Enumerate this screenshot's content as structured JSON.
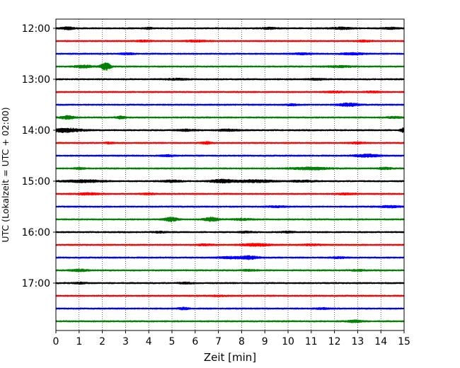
{
  "chart_data": {
    "type": "line",
    "title": "",
    "xlabel": "Zeit  [min]",
    "ylabel": "UTC (Lokalzeit = UTC + 02:00)",
    "xlim": [
      0,
      15
    ],
    "x_ticks": [
      0,
      1,
      2,
      3,
      4,
      5,
      6,
      7,
      8,
      9,
      10,
      11,
      12,
      13,
      14,
      15
    ],
    "grid": "vertical-dotted",
    "y_ticks": [
      {
        "label": "12:00",
        "row": 0
      },
      {
        "label": "13:00",
        "row": 4
      },
      {
        "label": "14:00",
        "row": 8
      },
      {
        "label": "15:00",
        "row": 12
      },
      {
        "label": "16:00",
        "row": 16
      },
      {
        "label": "17:00",
        "row": 20
      }
    ],
    "trace_colors": [
      "#000000",
      "#ff0000",
      "#0000ff",
      "#008000"
    ],
    "traces": [
      {
        "start": "12:00",
        "color": "#000000",
        "events": [
          {
            "t": 0.5,
            "amp": 1.5,
            "w": 0.3
          },
          {
            "t": 4.0,
            "amp": 1.0,
            "w": 0.2
          },
          {
            "t": 9.2,
            "amp": 1.0,
            "w": 0.3
          },
          {
            "t": 12.3,
            "amp": 1.2,
            "w": 0.4
          },
          {
            "t": 14.4,
            "amp": 1.0,
            "w": 0.3
          }
        ]
      },
      {
        "start": "12:15",
        "color": "#ff0000",
        "events": [
          {
            "t": 3.8,
            "amp": 0.8,
            "w": 0.3
          },
          {
            "t": 6.0,
            "amp": 0.8,
            "w": 0.5
          },
          {
            "t": 13.3,
            "amp": 0.8,
            "w": 0.3
          }
        ]
      },
      {
        "start": "12:30",
        "color": "#0000ff",
        "events": [
          {
            "t": 3.1,
            "amp": 0.8,
            "w": 0.3
          },
          {
            "t": 10.6,
            "amp": 0.8,
            "w": 0.4
          },
          {
            "t": 12.8,
            "amp": 1.0,
            "w": 0.5
          }
        ]
      },
      {
        "start": "12:45",
        "color": "#008000",
        "events": [
          {
            "t": 1.2,
            "amp": 1.5,
            "w": 0.4
          },
          {
            "t": 2.15,
            "amp": 5.0,
            "w": 0.2
          },
          {
            "t": 12.2,
            "amp": 1.0,
            "w": 0.5
          }
        ]
      },
      {
        "start": "13:00",
        "color": "#000000",
        "events": [
          {
            "t": 5.2,
            "amp": 0.8,
            "w": 0.5
          },
          {
            "t": 11.2,
            "amp": 0.8,
            "w": 0.4
          }
        ]
      },
      {
        "start": "13:15",
        "color": "#ff0000",
        "events": [
          {
            "t": 12.0,
            "amp": 0.8,
            "w": 0.4
          },
          {
            "t": 13.6,
            "amp": 0.8,
            "w": 0.3
          }
        ]
      },
      {
        "start": "13:30",
        "color": "#0000ff",
        "events": [
          {
            "t": 10.2,
            "amp": 0.8,
            "w": 0.3
          },
          {
            "t": 12.6,
            "amp": 2.0,
            "w": 0.4
          }
        ]
      },
      {
        "start": "13:45",
        "color": "#008000",
        "events": [
          {
            "t": 0.5,
            "amp": 2.0,
            "w": 0.3
          },
          {
            "t": 2.8,
            "amp": 1.5,
            "w": 0.2
          },
          {
            "t": 14.6,
            "amp": 1.0,
            "w": 0.3
          }
        ]
      },
      {
        "start": "14:00",
        "color": "#000000",
        "events": [
          {
            "t": 0.4,
            "amp": 2.5,
            "w": 0.7
          },
          {
            "t": 5.6,
            "amp": 1.0,
            "w": 0.4
          },
          {
            "t": 7.4,
            "amp": 1.0,
            "w": 0.5
          },
          {
            "t": 14.95,
            "amp": 3.0,
            "w": 0.1
          }
        ]
      },
      {
        "start": "14:15",
        "color": "#ff0000",
        "events": [
          {
            "t": 2.3,
            "amp": 0.8,
            "w": 0.2
          },
          {
            "t": 6.5,
            "amp": 1.5,
            "w": 0.2
          },
          {
            "t": 13.0,
            "amp": 0.8,
            "w": 0.4
          }
        ]
      },
      {
        "start": "14:30",
        "color": "#0000ff",
        "events": [
          {
            "t": 4.8,
            "amp": 0.8,
            "w": 0.3
          },
          {
            "t": 13.4,
            "amp": 1.8,
            "w": 0.5
          }
        ]
      },
      {
        "start": "14:45",
        "color": "#008000",
        "events": [
          {
            "t": 1.0,
            "amp": 1.2,
            "w": 0.2
          },
          {
            "t": 11.0,
            "amp": 1.5,
            "w": 0.8
          },
          {
            "t": 14.2,
            "amp": 1.0,
            "w": 0.3
          }
        ]
      },
      {
        "start": "15:00",
        "color": "#000000",
        "events": [
          {
            "t": 1.2,
            "amp": 1.5,
            "w": 0.8
          },
          {
            "t": 5.0,
            "amp": 1.2,
            "w": 0.4
          },
          {
            "t": 7.2,
            "amp": 2.0,
            "w": 0.5
          },
          {
            "t": 8.6,
            "amp": 1.5,
            "w": 0.8
          },
          {
            "t": 10.6,
            "amp": 1.0,
            "w": 0.5
          }
        ]
      },
      {
        "start": "15:15",
        "color": "#ff0000",
        "events": [
          {
            "t": 1.4,
            "amp": 1.2,
            "w": 0.5
          },
          {
            "t": 4.0,
            "amp": 0.8,
            "w": 0.3
          },
          {
            "t": 12.5,
            "amp": 0.8,
            "w": 0.4
          }
        ]
      },
      {
        "start": "15:30",
        "color": "#0000ff",
        "events": [
          {
            "t": 9.5,
            "amp": 0.8,
            "w": 0.4
          },
          {
            "t": 14.4,
            "amp": 1.0,
            "w": 0.5
          }
        ]
      },
      {
        "start": "15:45",
        "color": "#008000",
        "events": [
          {
            "t": 4.95,
            "amp": 2.5,
            "w": 0.3
          },
          {
            "t": 6.7,
            "amp": 2.5,
            "w": 0.3
          },
          {
            "t": 8.0,
            "amp": 1.0,
            "w": 0.4
          }
        ]
      },
      {
        "start": "16:00",
        "color": "#000000",
        "events": [
          {
            "t": 4.5,
            "amp": 0.8,
            "w": 0.3
          },
          {
            "t": 8.2,
            "amp": 0.8,
            "w": 0.3
          },
          {
            "t": 10.0,
            "amp": 0.8,
            "w": 0.3
          }
        ]
      },
      {
        "start": "16:15",
        "color": "#ff0000",
        "events": [
          {
            "t": 6.4,
            "amp": 0.8,
            "w": 0.4
          },
          {
            "t": 8.6,
            "amp": 1.5,
            "w": 0.6
          },
          {
            "t": 11.0,
            "amp": 0.8,
            "w": 0.4
          }
        ]
      },
      {
        "start": "16:30",
        "color": "#0000ff",
        "events": [
          {
            "t": 7.5,
            "amp": 1.2,
            "w": 0.5
          },
          {
            "t": 8.3,
            "amp": 2.0,
            "w": 0.4
          },
          {
            "t": 12.2,
            "amp": 0.8,
            "w": 0.3
          }
        ]
      },
      {
        "start": "16:45",
        "color": "#008000",
        "events": [
          {
            "t": 1.0,
            "amp": 1.2,
            "w": 0.4
          },
          {
            "t": 8.3,
            "amp": 0.8,
            "w": 0.3
          },
          {
            "t": 13.0,
            "amp": 0.8,
            "w": 0.3
          }
        ]
      },
      {
        "start": "17:00",
        "color": "#000000",
        "events": [
          {
            "t": 1.0,
            "amp": 0.8,
            "w": 0.3
          },
          {
            "t": 5.6,
            "amp": 0.8,
            "w": 0.3
          }
        ]
      },
      {
        "start": "17:15",
        "color": "#ff0000",
        "events": [
          {
            "t": 7.0,
            "amp": 0.6,
            "w": 0.3
          }
        ]
      },
      {
        "start": "17:30",
        "color": "#0000ff",
        "events": [
          {
            "t": 5.5,
            "amp": 1.2,
            "w": 0.2
          },
          {
            "t": 11.5,
            "amp": 0.8,
            "w": 0.3
          }
        ]
      },
      {
        "start": "17:45",
        "color": "#008000",
        "events": [
          {
            "t": 12.9,
            "amp": 1.5,
            "w": 0.3
          }
        ]
      }
    ]
  }
}
